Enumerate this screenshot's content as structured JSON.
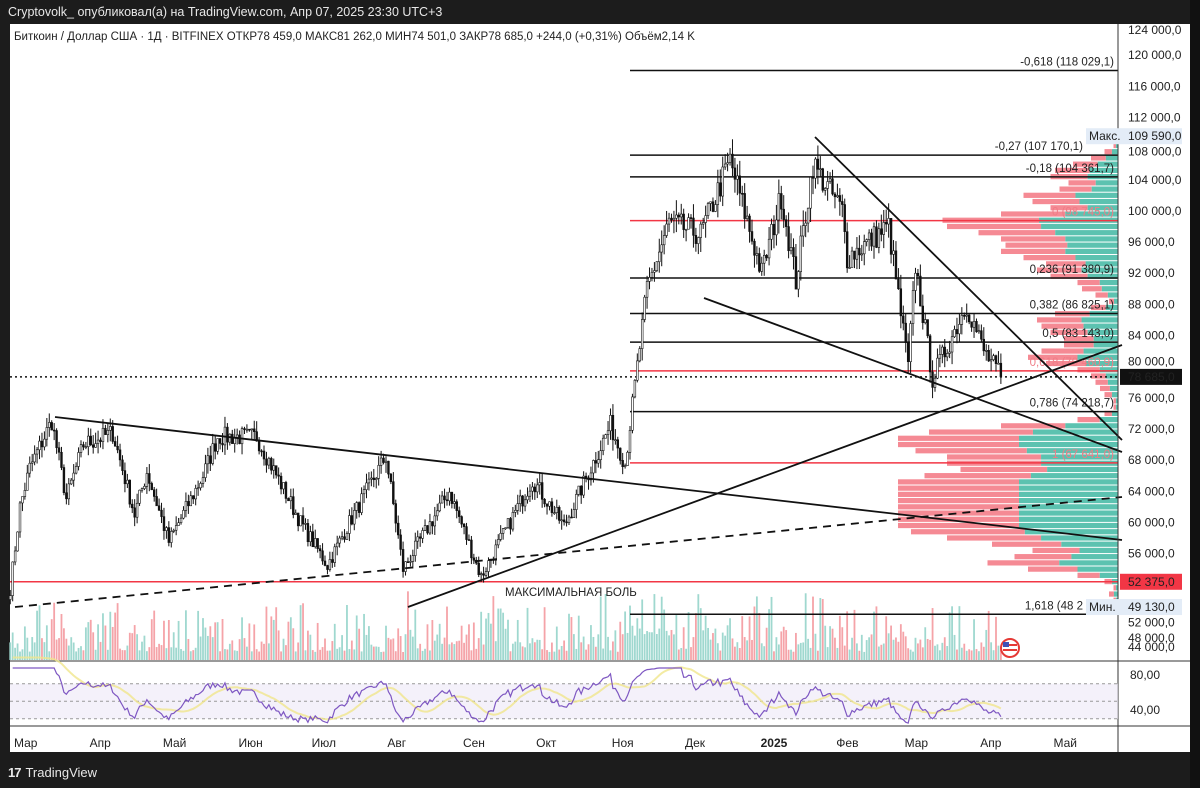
{
  "header": {
    "publisher_line": "Cryptovolk_ опубликовал(а) на TradingView.com, Апр 07, 2025 23:30 UTC+3",
    "symbol_line": "Биткоин / Доллар США · 1Д · BITFINEX  ОТКР78 459,0  МАКС81 262,0  МИН74 501,0  ЗАКР78 685,0  +244,0 (+0,31%)  Объём2,14 K"
  },
  "footer": {
    "logo": "17",
    "brand": "TradingView"
  },
  "colors": {
    "up": "#ffffff",
    "down": "#111111",
    "red_level": "#f23645",
    "vol_up": "#9fd8cf",
    "vol_down": "#f5a3a8",
    "profile_up": "#5cc2b0",
    "profile_down": "#f58a94",
    "rsi": "#7e57c2",
    "rsi_ma": "#f0e68c"
  },
  "chart_data": {
    "type": "candlestick",
    "symbol": "BTC/USD",
    "timeframe": "1D",
    "ylim": [
      44000,
      124000
    ],
    "price_ticks": [
      "124 000,0",
      "120 000,0",
      "116 000,0",
      "112 000,0",
      "108 000,0",
      "104 000,0",
      "100 000,0",
      "96 000,0",
      "92 000,0",
      "88 000,0",
      "84 000,0",
      "80 000,0",
      "76 000,0",
      "72 000,0",
      "68 000,0",
      "64 000,0",
      "60 000,0",
      "56 000,0",
      "52 000,0",
      "48 000,0",
      "44 000,0"
    ],
    "price_tick_values": [
      124000,
      120000,
      116000,
      112000,
      108000,
      104000,
      100000,
      96000,
      92000,
      88000,
      84000,
      80000,
      76000,
      72000,
      68000,
      64000,
      60000,
      56000,
      52000,
      48000,
      44000
    ],
    "x_months": [
      {
        "label": "Мар",
        "day": 0
      },
      {
        "label": "Апр",
        "day": 31
      },
      {
        "label": "Май",
        "day": 61
      },
      {
        "label": "Июн",
        "day": 92
      },
      {
        "label": "Июл",
        "day": 122
      },
      {
        "label": "Авг",
        "day": 153
      },
      {
        "label": "Сен",
        "day": 184
      },
      {
        "label": "Окт",
        "day": 214
      },
      {
        "label": "Ноя",
        "day": 245
      },
      {
        "label": "Дек",
        "day": 275
      },
      {
        "label": "2025",
        "day": 306
      },
      {
        "label": "Фев",
        "day": 337
      },
      {
        "label": "Мар",
        "day": 365
      },
      {
        "label": "Апр",
        "day": 396
      },
      {
        "label": "Май",
        "day": 426
      }
    ],
    "close_anchors_day_price": [
      [
        -4,
        51500
      ],
      [
        0,
        62000
      ],
      [
        4,
        67000
      ],
      [
        13,
        73000
      ],
      [
        19,
        63000
      ],
      [
        26,
        70000
      ],
      [
        38,
        71500
      ],
      [
        47,
        61000
      ],
      [
        52,
        66500
      ],
      [
        61,
        57500
      ],
      [
        75,
        66000
      ],
      [
        81,
        71000
      ],
      [
        97,
        71000
      ],
      [
        115,
        60000
      ],
      [
        126,
        54500
      ],
      [
        135,
        60000
      ],
      [
        150,
        68500
      ],
      [
        157,
        54000
      ],
      [
        176,
        64000
      ],
      [
        189,
        53000
      ],
      [
        210,
        65500
      ],
      [
        223,
        59500
      ],
      [
        242,
        72500
      ],
      [
        248,
        67500
      ],
      [
        257,
        90000
      ],
      [
        266,
        98500
      ],
      [
        279,
        97000
      ],
      [
        291,
        106500
      ],
      [
        304,
        92000
      ],
      [
        312,
        102000
      ],
      [
        318,
        91000
      ],
      [
        325,
        106000
      ],
      [
        337,
        100000
      ],
      [
        339,
        94000
      ],
      [
        356,
        98000
      ],
      [
        364,
        80000
      ],
      [
        367,
        93000
      ],
      [
        374,
        78500
      ],
      [
        388,
        88000
      ],
      [
        395,
        82000
      ],
      [
        402,
        78685
      ]
    ],
    "last_price": {
      "label": "78 685,0",
      "value": 78685
    },
    "max_marker": {
      "label": "Макс.",
      "value_label": "109 590,0",
      "value": 109590
    },
    "min_marker": {
      "label": "Мин.",
      "value_label": "49 130,0",
      "value": 49130
    },
    "support_level": {
      "label": "52 375,0",
      "value": 52375
    },
    "fib_levels": [
      {
        "label": "-0,618 (118 029,1)",
        "value": 118029.1,
        "red": false
      },
      {
        "label": "-0,27 (107 170,1)",
        "value": 107170.1,
        "red": false
      },
      {
        "label": "-0,18 (104 361,7)",
        "value": 104361.7,
        "red": false
      },
      {
        "label": "0 (98 745,0)",
        "value": 98745.0,
        "red": true
      },
      {
        "label": "0,236 (91 380,9)",
        "value": 91380.9,
        "red": false
      },
      {
        "label": "0,382 (86 825,1)",
        "value": 86825.1,
        "red": false
      },
      {
        "label": "0,5 (83 143,0)",
        "value": 83143.0,
        "red": false
      },
      {
        "label": "0,618 (79 460,9)",
        "value": 79460.9,
        "red": true
      },
      {
        "label": "0,786 (74 218,7)",
        "value": 74218.7,
        "red": false
      },
      {
        "label": "1 (67 641,0)",
        "value": 67641.0,
        "red": true
      },
      {
        "label": "1,618 (48 2",
        "value": 48200,
        "red": false
      }
    ],
    "annotation": "МАКСИМАЛЬНАЯ БОЛЬ",
    "rsi": {
      "ticks": [
        "80,00",
        "40,00"
      ],
      "tick_values": [
        80,
        40
      ],
      "bands": [
        70,
        50,
        30
      ],
      "period": 14
    }
  }
}
